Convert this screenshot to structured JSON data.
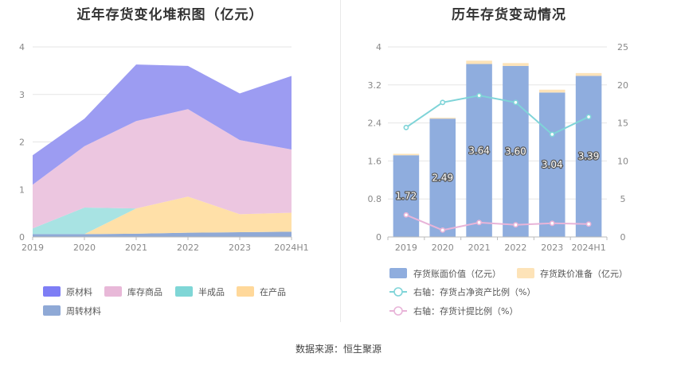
{
  "source": "数据来源：恒生聚源",
  "chart_data": [
    {
      "type": "area",
      "stacked": true,
      "title": "近年存货变化堆积图（亿元）",
      "categories": [
        "2019",
        "2020",
        "2021",
        "2022",
        "2023",
        "2024H1"
      ],
      "ylim": [
        0,
        4
      ],
      "yticks": [
        0,
        1,
        2,
        3,
        4
      ],
      "grid": true,
      "legend_position": "bottom",
      "series": [
        {
          "name": "周转材料",
          "color": "#8fa9d6",
          "values": [
            0.06,
            0.06,
            0.07,
            0.09,
            0.1,
            0.11
          ]
        },
        {
          "name": "在产品",
          "color": "#ffe0a8",
          "values": [
            0.0,
            0.0,
            0.53,
            0.76,
            0.38,
            0.4
          ]
        },
        {
          "name": "半成品",
          "color": "#a8e3e3",
          "values": [
            0.12,
            0.56,
            0.0,
            0.0,
            0.0,
            0.0
          ]
        },
        {
          "name": "库存商品",
          "color": "#ecc6e0",
          "values": [
            0.92,
            1.29,
            1.84,
            1.84,
            1.56,
            1.33
          ]
        },
        {
          "name": "原材料",
          "color": "#9c9cf2",
          "values": [
            0.62,
            0.58,
            1.19,
            0.91,
            0.98,
            1.55
          ]
        }
      ],
      "legend": [
        {
          "name": "原材料",
          "color": "#7e7ef5"
        },
        {
          "name": "库存商品",
          "color": "#e8b8d8"
        },
        {
          "name": "半成品",
          "color": "#7fd6d6"
        },
        {
          "name": "在产品",
          "color": "#ffd89a"
        },
        {
          "name": "周转材料",
          "color": "#8fa9d6"
        }
      ]
    },
    {
      "type": "bar",
      "title": "历年存货变动情况",
      "categories": [
        "2019",
        "2020",
        "2021",
        "2022",
        "2023",
        "2024H1"
      ],
      "ylim": [
        0,
        4
      ],
      "yticks": [
        "0",
        "0.8",
        "1.6",
        "2.4",
        "3.2",
        "4"
      ],
      "y2lim": [
        0,
        25
      ],
      "y2ticks": [
        "0",
        "5",
        "10",
        "15",
        "20",
        "25"
      ],
      "legend_position": "bottom",
      "series": [
        {
          "name": "存货账面价值（亿元）",
          "color": "#8fadde",
          "values": [
            1.72,
            2.49,
            3.64,
            3.6,
            3.04,
            3.39
          ],
          "labels": [
            "1.72",
            "2.49",
            "3.64",
            "3.60",
            "3.04",
            "3.39"
          ]
        },
        {
          "name": "存货跌价准备（亿元）",
          "color": "#fde3b8",
          "values": [
            0.03,
            0.02,
            0.07,
            0.06,
            0.06,
            0.06
          ]
        }
      ],
      "line_series": [
        {
          "name": "右轴：存货占净资产比例（%）",
          "color": "#7fd4d8",
          "axis": "right",
          "values": [
            14.4,
            17.7,
            18.6,
            17.7,
            13.5,
            15.8
          ]
        },
        {
          "name": "右轴：存货计提比例（%）",
          "color": "#e8b4d8",
          "axis": "right",
          "values": [
            2.9,
            0.9,
            1.9,
            1.6,
            1.8,
            1.7
          ]
        }
      ]
    }
  ]
}
